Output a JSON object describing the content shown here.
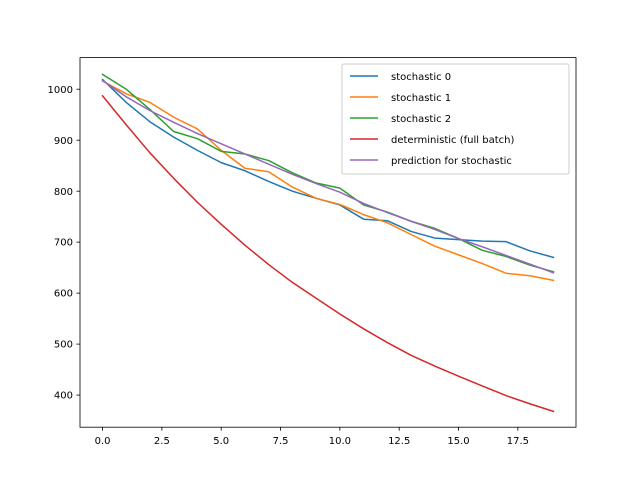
{
  "chart_data": {
    "type": "line",
    "title": "",
    "xlabel": "",
    "ylabel": "",
    "xlim": [
      -0.95,
      19.95
    ],
    "ylim": [
      337,
      1062
    ],
    "grid": false,
    "legend_position": "top-right",
    "x": [
      0,
      1,
      2,
      3,
      4,
      5,
      6,
      7,
      8,
      9,
      10,
      11,
      12,
      13,
      14,
      15,
      16,
      17,
      18,
      19
    ],
    "x_ticks": [
      0.0,
      2.5,
      5.0,
      7.5,
      10.0,
      12.5,
      15.0,
      17.5
    ],
    "x_tick_labels": [
      "0.0",
      "2.5",
      "5.0",
      "7.5",
      "10.0",
      "12.5",
      "15.0",
      "17.5"
    ],
    "y_ticks": [
      400,
      500,
      600,
      700,
      800,
      900,
      1000
    ],
    "y_tick_labels": [
      "400",
      "500",
      "600",
      "700",
      "800",
      "900",
      "1000"
    ],
    "series": [
      {
        "name": "stochastic 0",
        "color": "#1f77b4",
        "values": [
          1019,
          974,
          936,
          906,
          880,
          856,
          840,
          819,
          800,
          786,
          773,
          745,
          742,
          721,
          708,
          705,
          702,
          701,
          683,
          670
        ]
      },
      {
        "name": "stochastic 1",
        "color": "#ff7f0e",
        "values": [
          1016,
          991,
          974,
          945,
          922,
          880,
          845,
          838,
          808,
          786,
          774,
          754,
          738,
          715,
          692,
          675,
          658,
          639,
          634,
          625
        ]
      },
      {
        "name": "stochastic 2",
        "color": "#2ca02c",
        "values": [
          1029,
          1000,
          960,
          917,
          903,
          878,
          873,
          860,
          836,
          816,
          806,
          773,
          759,
          741,
          727,
          707,
          684,
          672,
          655,
          642
        ]
      },
      {
        "name": "deterministic (full batch)",
        "color": "#d62728",
        "values": [
          987,
          930,
          875,
          825,
          778,
          735,
          694,
          656,
          621,
          590,
          559,
          530,
          503,
          478,
          457,
          437,
          418,
          399,
          383,
          368
        ]
      },
      {
        "name": "prediction for stochastic",
        "color": "#9467bd",
        "values": [
          1017,
          985,
          958,
          935,
          913,
          893,
          873,
          853,
          833,
          815,
          798,
          776,
          758,
          741,
          725,
          707,
          691,
          674,
          657,
          640
        ]
      }
    ]
  }
}
